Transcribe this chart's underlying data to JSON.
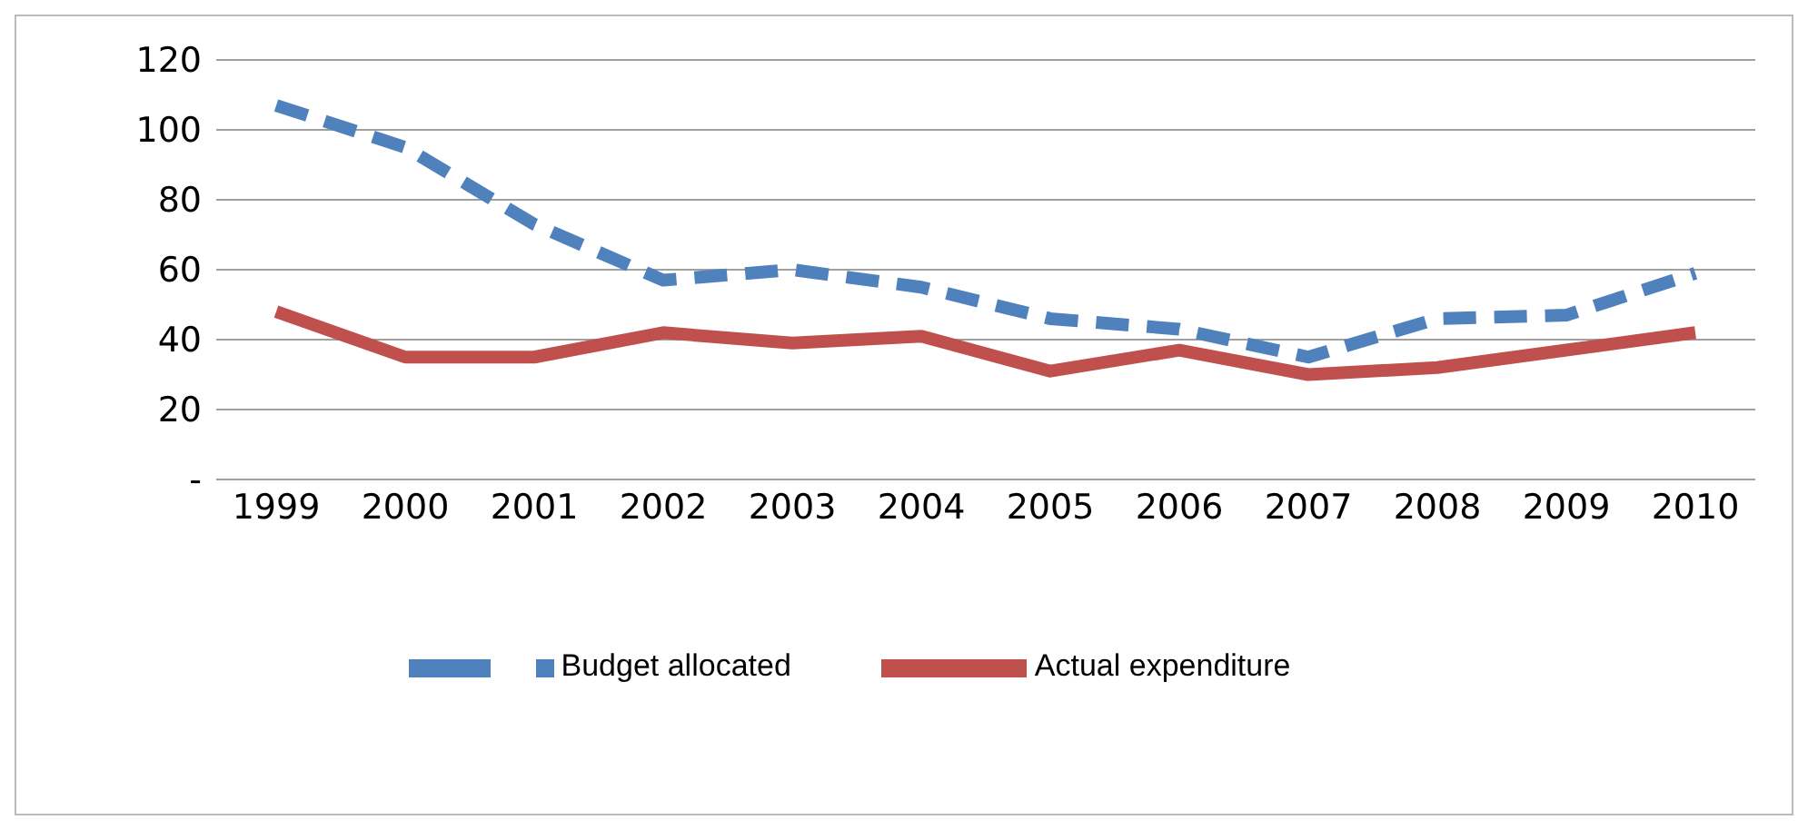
{
  "chart_data": {
    "type": "line",
    "categories": [
      "1999",
      "2000",
      "2001",
      "2002",
      "2003",
      "2004",
      "2005",
      "2006",
      "2007",
      "2008",
      "2009",
      "2010"
    ],
    "series": [
      {
        "name": "Budget allocated",
        "color": "#4f81bd",
        "line_style": "dashed",
        "values": [
          107,
          95,
          73,
          57,
          60,
          55,
          46,
          43,
          35,
          46,
          47,
          59
        ]
      },
      {
        "name": "Actual expenditure",
        "color": "#c0504d",
        "line_style": "solid",
        "values": [
          48,
          35,
          35,
          42,
          39,
          41,
          31,
          37,
          30,
          32,
          37,
          42
        ]
      }
    ],
    "ylim": [
      0,
      120
    ],
    "yticks": [
      {
        "value": 0,
        "label": "-"
      },
      20,
      40,
      60,
      80,
      100,
      120
    ],
    "grid": "y",
    "legend": "bottom",
    "marker": "none"
  }
}
